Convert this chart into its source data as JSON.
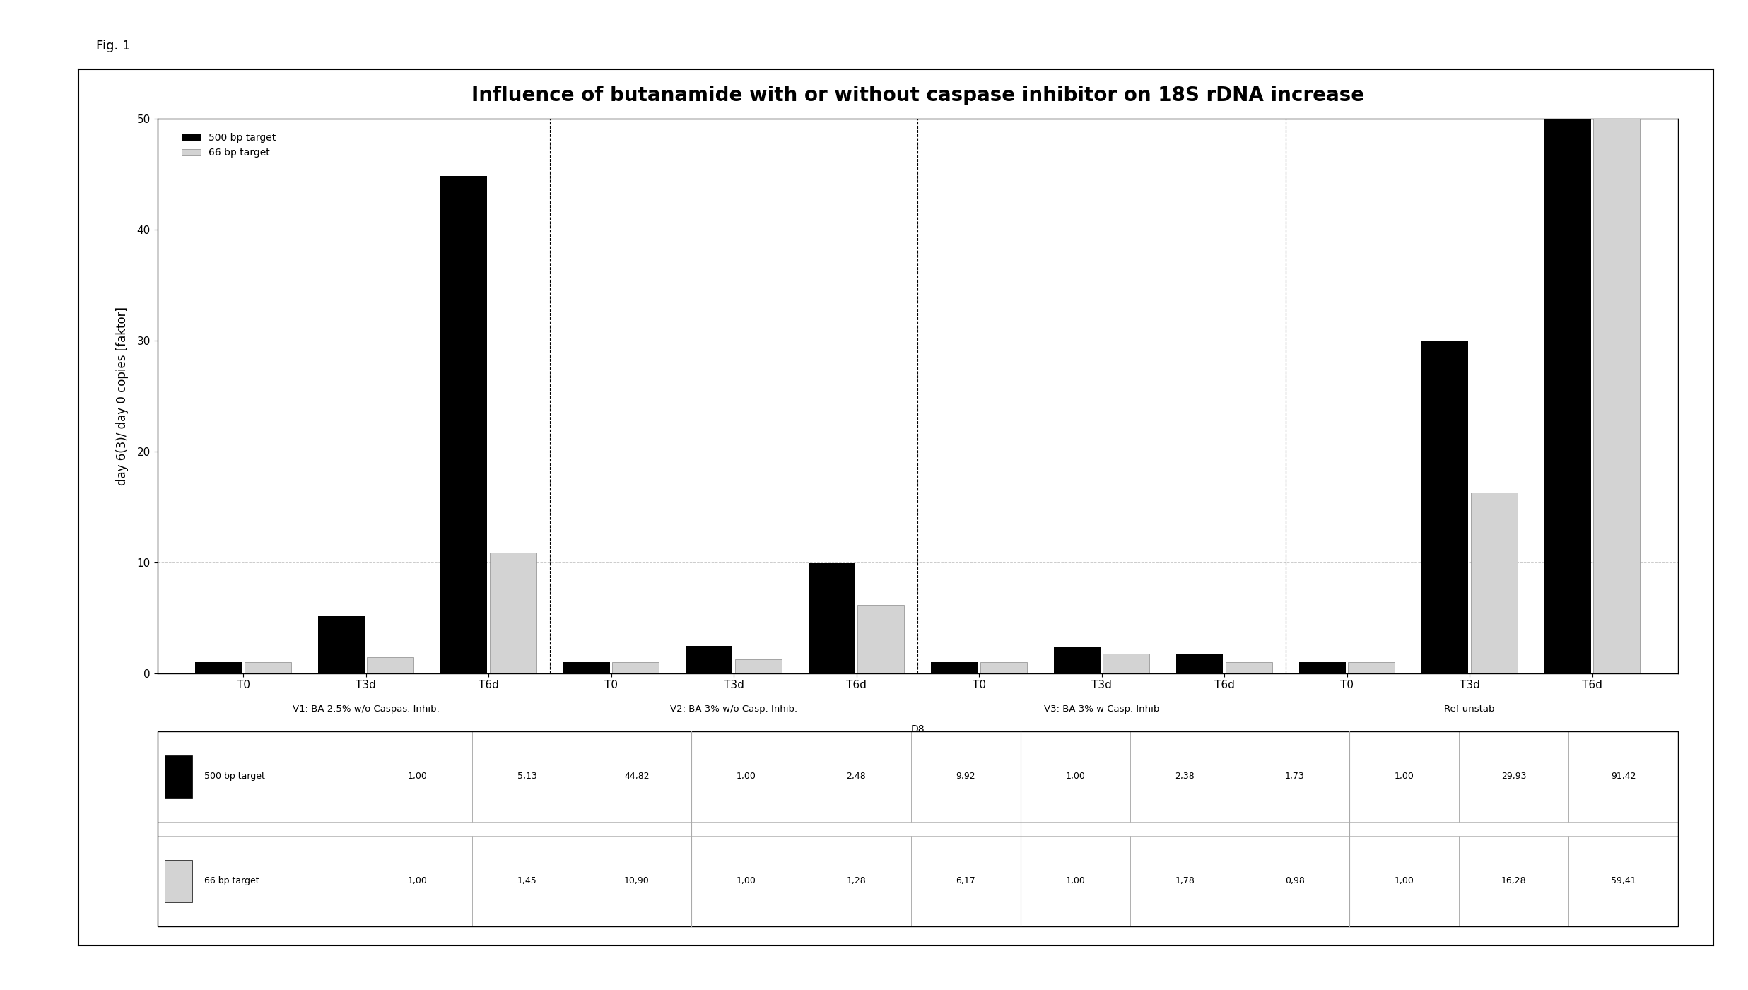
{
  "title": "Influence of butanamide with or without caspase inhibitor on 18S rDNA increase",
  "ylabel": "day 6(3)/ day 0 copies [faktor]",
  "ylim": [
    0,
    50
  ],
  "yticks": [
    0,
    10,
    20,
    30,
    40,
    50
  ],
  "groups": [
    {
      "label": "V1: BA 2.5% w/o Caspas. Inhib."
    },
    {
      "label": "V2: BA 3% w/o Casp. Inhib."
    },
    {
      "label": "V3: BA 3% w Casp. Inhib"
    },
    {
      "label": "Ref unstab"
    }
  ],
  "series_500": [
    1.0,
    5.13,
    44.82,
    1.0,
    2.48,
    9.92,
    1.0,
    2.38,
    1.73,
    1.0,
    29.93,
    91.42
  ],
  "series_66": [
    1.0,
    1.45,
    10.9,
    1.0,
    1.28,
    6.17,
    1.0,
    1.78,
    0.98,
    1.0,
    16.28,
    59.41
  ],
  "color_500": "#000000",
  "color_66": "#d3d3d3",
  "color_66_edge": "#888888",
  "legend_500": "500 bp target",
  "legend_66": "66 bp target",
  "table_row1_label": "500 bp target",
  "table_row2_label": "66 bp target",
  "table_row1_vals": [
    "1,00",
    "5,13",
    "44,82",
    "1,00",
    "2,48",
    "9,92",
    "1,00",
    "2,38",
    "1,73",
    "1,00",
    "29,93",
    "91,42"
  ],
  "table_row2_vals": [
    "1,00",
    "1,45",
    "10,90",
    "1,00",
    "1,28",
    "6,17",
    "1,00",
    "1,78",
    "0,98",
    "1,00",
    "16,28",
    "59,41"
  ],
  "background_color": "#ffffff",
  "fig_label": "Fig. 1",
  "D8_label": "D8"
}
